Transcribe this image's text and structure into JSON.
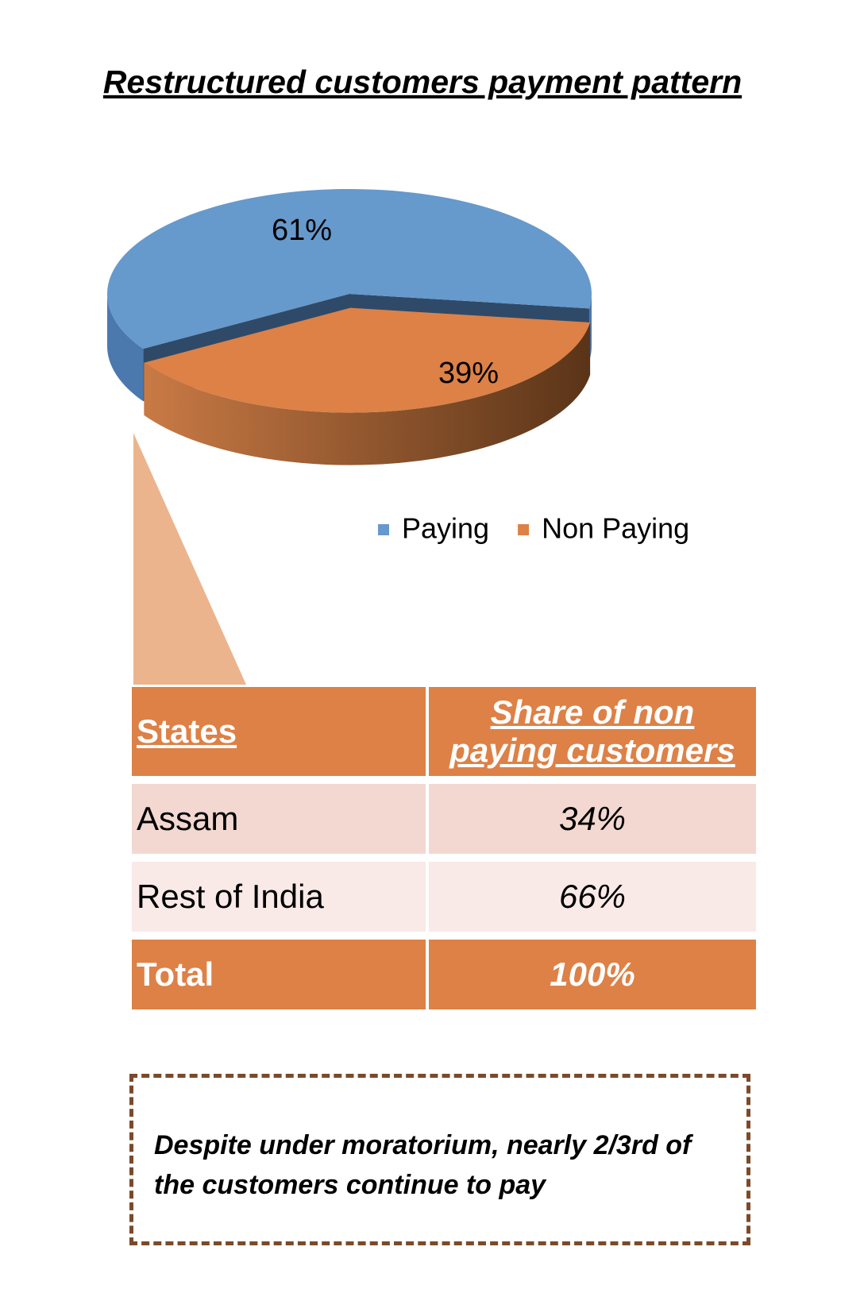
{
  "chart_data": {
    "type": "pie",
    "title": "Restructured customers payment pattern",
    "categories": [
      "Paying",
      "Non Paying"
    ],
    "values": [
      61,
      39
    ],
    "value_labels": [
      "61%",
      "39%"
    ],
    "colors": [
      "#6699cc",
      "#dd8147"
    ],
    "legend": "bottom-right"
  },
  "table": {
    "header": [
      "States",
      "Share of non paying customers"
    ],
    "rows": [
      [
        "Assam",
        "34%"
      ],
      [
        "Rest of India",
        "66%"
      ]
    ],
    "total": [
      "Total",
      "100%"
    ]
  },
  "note": "Despite under moratorium, nearly 2/3rd of the customers continue to pay"
}
